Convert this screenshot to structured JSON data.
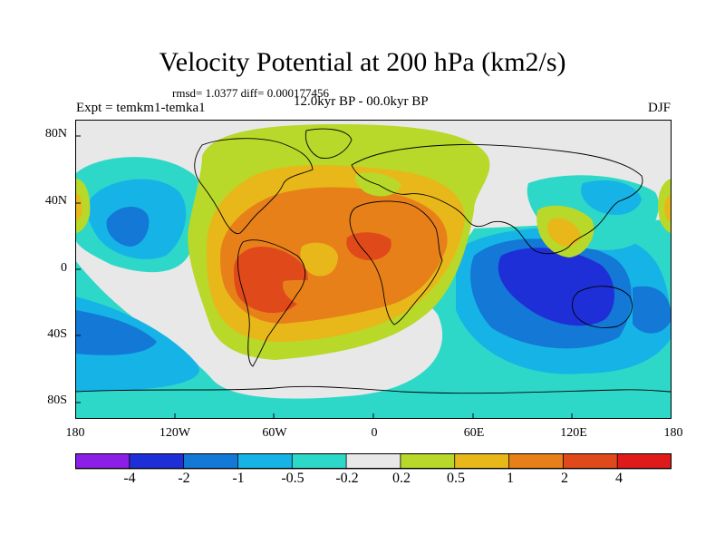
{
  "title": "Velocity Potential at 200 hPa (km2/s)",
  "stats": "rmsd= 1.0377 diff= 0.000177456",
  "expt_label": "Expt = temkm1-temka1",
  "period": "12.0kyr BP - 00.0kyr BP",
  "season": "DJF",
  "y_ticks": [
    "80N",
    "40N",
    "0",
    "40S",
    "80S"
  ],
  "x_ticks": [
    "180",
    "120W",
    "60W",
    "0",
    "60E",
    "120E",
    "180"
  ],
  "colorbar": {
    "labels": [
      "-4",
      "-2",
      "-1",
      "-0.5",
      "-0.2",
      "0.2",
      "0.5",
      "1",
      "2",
      "4"
    ],
    "colors": [
      "#8b1fe6",
      "#1f2fd8",
      "#1478d6",
      "#16b4e6",
      "#2ed8c8",
      "#e8e8e8",
      "#b8d82a",
      "#e8b81a",
      "#e8801a",
      "#e04a1a",
      "#e01a1a"
    ]
  },
  "map": {
    "lat_range": [
      -90,
      90
    ],
    "lon_range": [
      -180,
      180
    ],
    "background": "#e8e8e8"
  }
}
